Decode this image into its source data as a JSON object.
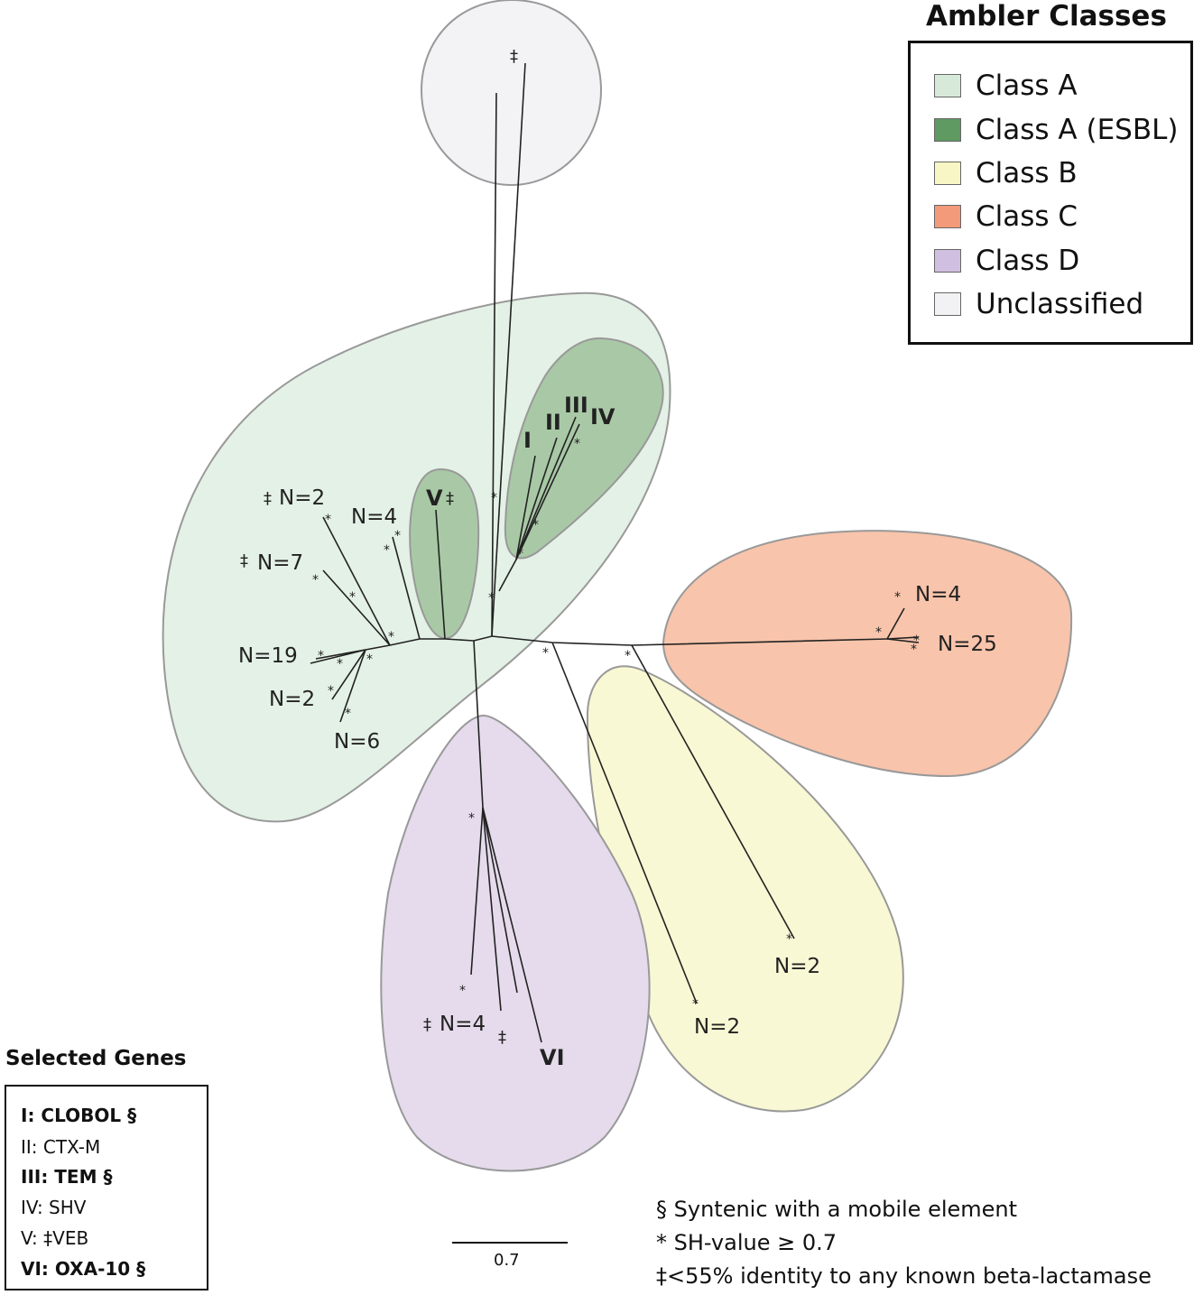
{
  "legend": {
    "title": "Ambler Classes",
    "items": [
      {
        "label": "Class A",
        "color": "#d7ead9"
      },
      {
        "label": "Class A (ESBL)",
        "color": "#5e9a61"
      },
      {
        "label": "Class B",
        "color": "#f8f6c4"
      },
      {
        "label": "Class C",
        "color": "#f39a7a"
      },
      {
        "label": "Class D",
        "color": "#d0bfe0"
      },
      {
        "label": "Unclassified",
        "color": "#f2f2f4"
      }
    ]
  },
  "region_colors": {
    "class_a": "#e4f1e6",
    "class_a_esbl": "#a9c9a6",
    "class_b": "#f9f8d4",
    "class_c": "#f8c4ab",
    "class_d": "#e5dbec",
    "unclassified": "#f3f3f5"
  },
  "tree_labels": {
    "a_n2": "N=2",
    "a_n7": "N=7",
    "a_n4": "N=4",
    "a_n19": "N=19",
    "a_n2b": "N=2",
    "a_n6": "N=6",
    "esbl_I": "I",
    "esbl_II": "II",
    "esbl_III": "III",
    "esbl_IV": "IV",
    "esbl_V": "V",
    "c_n4": "N=4",
    "c_n25": "N=25",
    "b_n2a": "N=2",
    "b_n2b": "N=2",
    "d_n4": "N=4",
    "d_VI": "VI",
    "asterisk": "*",
    "dagger": "‡"
  },
  "selected_genes": {
    "title": "Selected Genes",
    "items": [
      {
        "text": "I: CLOBOL §",
        "bold": true
      },
      {
        "text": "II: CTX-M",
        "bold": false
      },
      {
        "text": "III: TEM §",
        "bold": true
      },
      {
        "text": "IV: SHV",
        "bold": false
      },
      {
        "text": "V: ‡VEB",
        "bold": false
      },
      {
        "text": "VI: OXA-10 §",
        "bold": true
      }
    ]
  },
  "notes": [
    "§ Syntenic with a mobile element",
    "* SH-value ≥ 0.7",
    "‡<55% identity to any known beta-lactamase"
  ],
  "scale": {
    "label": "0.7",
    "value": 0.7
  }
}
